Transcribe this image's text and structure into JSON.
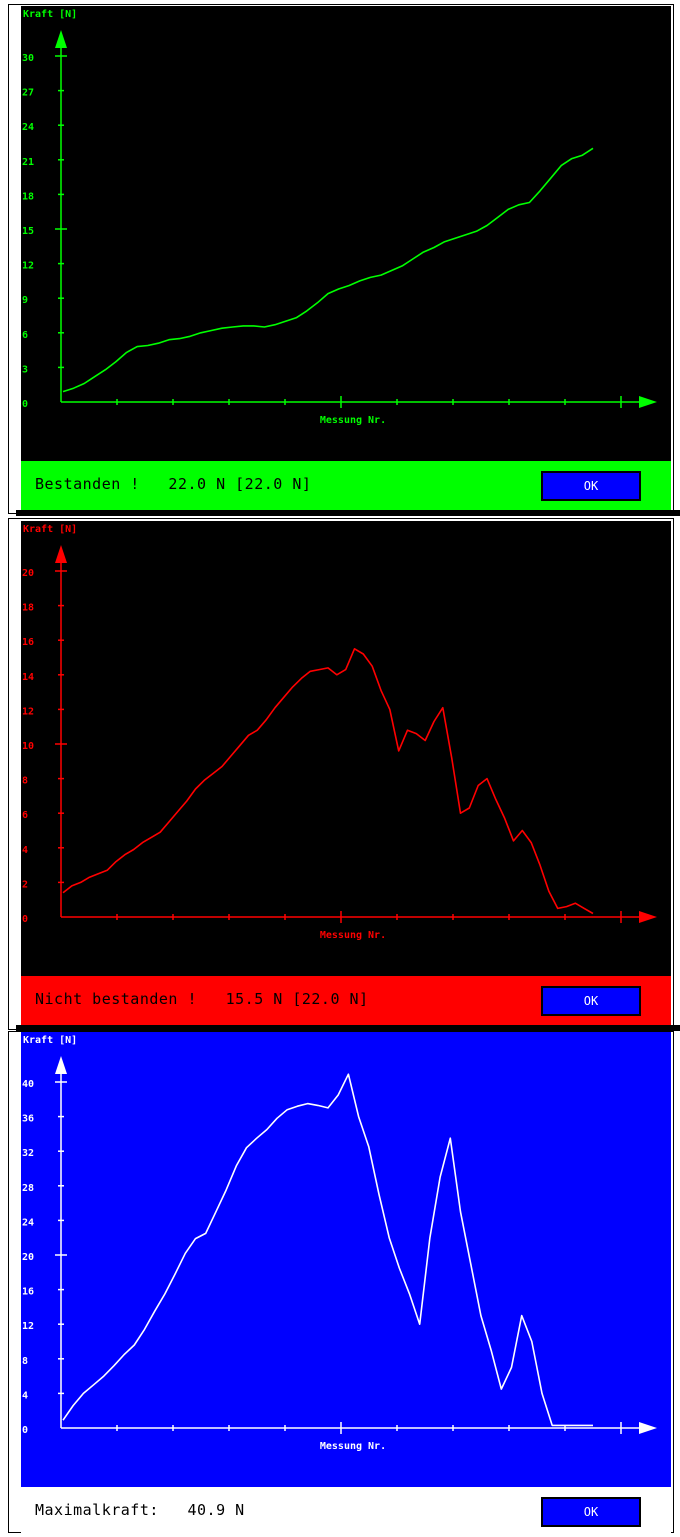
{
  "chart_data": [
    {
      "type": "line",
      "title": "",
      "ylabel": "Kraft [N]",
      "xlabel": "Messung Nr.",
      "ylim": [
        0,
        30
      ],
      "yticks": [
        0,
        3,
        6,
        9,
        12,
        15,
        18,
        21,
        24,
        27,
        30
      ],
      "y": [
        0.9,
        1.2,
        1.6,
        2.2,
        2.8,
        3.5,
        4.3,
        4.8,
        4.9,
        5.1,
        5.4,
        5.5,
        5.7,
        6.0,
        6.2,
        6.4,
        6.5,
        6.6,
        6.6,
        6.5,
        6.7,
        7.0,
        7.3,
        7.9,
        8.6,
        9.4,
        9.8,
        10.1,
        10.5,
        10.8,
        11.0,
        11.4,
        11.8,
        12.4,
        13.0,
        13.4,
        13.9,
        14.2,
        14.5,
        14.8,
        15.3,
        16.0,
        16.7,
        17.1,
        17.3,
        18.3,
        19.4,
        20.5,
        21.1,
        21.4,
        22.0
      ],
      "background": "#000000",
      "line_color": "#00ff00"
    },
    {
      "type": "line",
      "title": "",
      "ylabel": "Kraft [N]",
      "xlabel": "Messung Nr.",
      "ylim": [
        0,
        20
      ],
      "yticks": [
        0,
        2,
        4,
        6,
        8,
        10,
        12,
        14,
        16,
        18,
        20
      ],
      "y": [
        1.4,
        1.8,
        2.0,
        2.3,
        2.5,
        2.7,
        3.2,
        3.6,
        3.9,
        4.3,
        4.6,
        4.9,
        5.5,
        6.1,
        6.7,
        7.4,
        7.9,
        8.3,
        8.7,
        9.3,
        9.9,
        10.5,
        10.8,
        11.4,
        12.1,
        12.7,
        13.3,
        13.8,
        14.2,
        14.3,
        14.4,
        14.0,
        14.3,
        15.5,
        15.2,
        14.5,
        13.1,
        12.0,
        9.6,
        10.8,
        10.6,
        10.2,
        11.3,
        12.1,
        9.2,
        6.0,
        6.3,
        7.6,
        8.0,
        6.8,
        5.7,
        4.4,
        5.0,
        4.3,
        3.0,
        1.5,
        0.5,
        0.6,
        0.8,
        0.5,
        0.2
      ],
      "background": "#000000",
      "line_color": "#ff0000"
    },
    {
      "type": "line",
      "title": "",
      "ylabel": "Kraft [N]",
      "xlabel": "Messung Nr.",
      "ylim": [
        0,
        40
      ],
      "yticks": [
        0,
        4,
        8,
        12,
        16,
        20,
        24,
        28,
        32,
        36,
        40
      ],
      "y": [
        0.9,
        2.6,
        4.0,
        5.0,
        6.0,
        7.2,
        8.5,
        9.6,
        11.4,
        13.5,
        15.5,
        17.8,
        20.2,
        21.9,
        22.5,
        25.0,
        27.5,
        30.3,
        32.4,
        33.5,
        34.5,
        35.8,
        36.8,
        37.2,
        37.5,
        37.3,
        37.0,
        38.5,
        40.9,
        36.0,
        32.5,
        27.0,
        22.0,
        18.5,
        15.5,
        12.0,
        22.0,
        29.0,
        33.5,
        25.0,
        19.0,
        13.0,
        9.0,
        4.5,
        7.0,
        13.0,
        10.0,
        4.0,
        0.3,
        0.3,
        0.3,
        0.3,
        0.3
      ],
      "background": "#0000ff",
      "line_color": "#ffffff"
    }
  ],
  "panels": [
    {
      "status": "Bestanden !   22.0 N [22.0 N]",
      "ok": "OK",
      "status_bg": "#00ff00",
      "status_fg": "#000000"
    },
    {
      "status": "Nicht bestanden !   15.5 N [22.0 N]",
      "ok": "OK",
      "status_bg": "#ff0000",
      "status_fg": "#000000"
    },
    {
      "status": "Maximalkraft:   40.9 N",
      "ok": "OK",
      "status_bg": "#ffffff",
      "status_fg": "#000000"
    }
  ]
}
